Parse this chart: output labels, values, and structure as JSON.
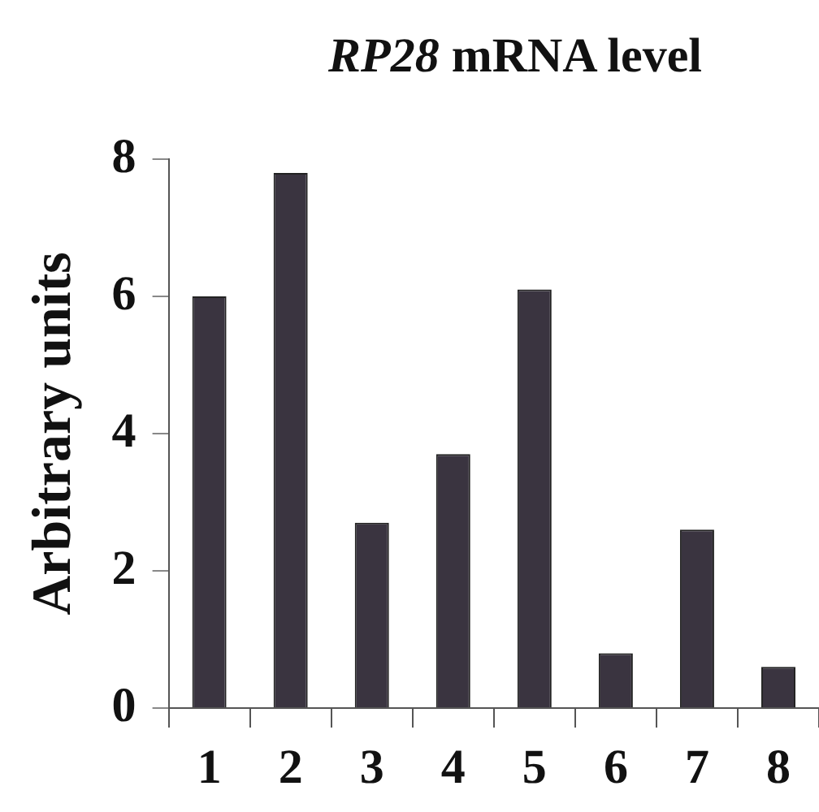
{
  "chart_data": {
    "type": "bar",
    "title": "RP28 mRNA level",
    "ylabel": "Arbitrary units",
    "categories": [
      "1",
      "2",
      "3",
      "4",
      "5",
      "6",
      "7",
      "8"
    ],
    "values": [
      6.0,
      7.8,
      2.7,
      3.7,
      6.1,
      0.8,
      2.6,
      0.6
    ],
    "color": "#3a3440",
    "ylim": [
      0,
      8
    ],
    "yticks": [
      0,
      2,
      4,
      6,
      8
    ],
    "legend": false
  }
}
